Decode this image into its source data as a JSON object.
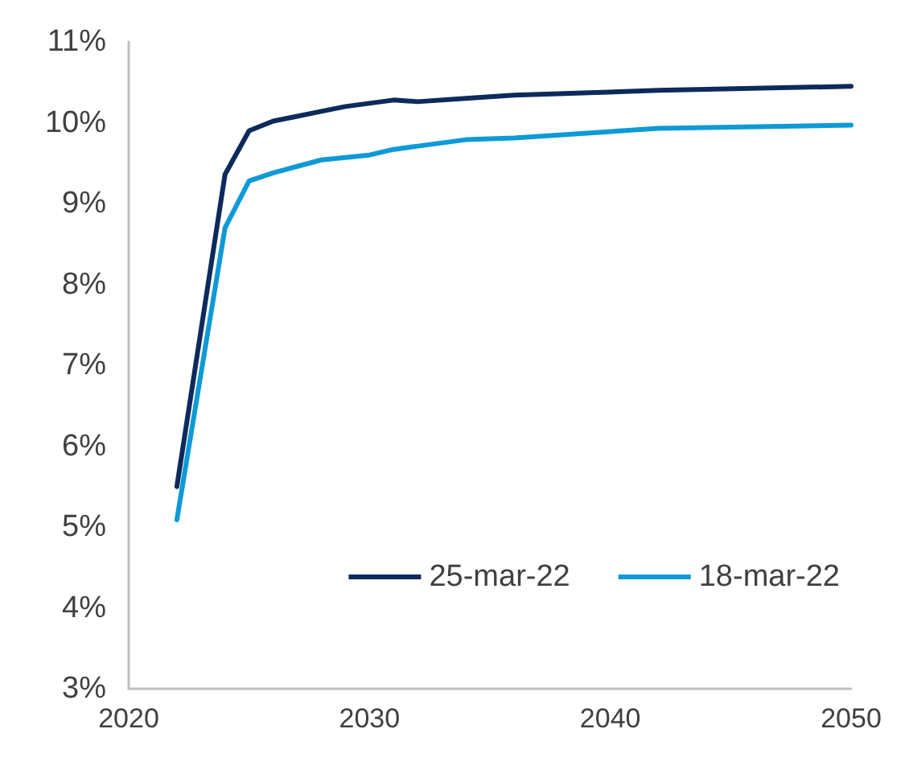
{
  "chart_data": {
    "type": "line",
    "x": [
      2022,
      2024,
      2025,
      2026,
      2027,
      2028,
      2029,
      2030,
      2031,
      2032,
      2034,
      2036,
      2042,
      2050
    ],
    "series": [
      {
        "name": "25-mar-22",
        "color": "#0d2a5c",
        "values": [
          5.5,
          9.36,
          9.9,
          10.02,
          10.08,
          10.14,
          10.2,
          10.24,
          10.28,
          10.26,
          10.3,
          10.34,
          10.4,
          10.45
        ]
      },
      {
        "name": "18-mar-22",
        "color": "#0d9ad6",
        "values": [
          5.09,
          8.7,
          9.28,
          9.38,
          9.46,
          9.54,
          9.57,
          9.6,
          9.67,
          9.71,
          9.79,
          9.81,
          9.93,
          9.97
        ]
      }
    ],
    "xlim": [
      2020,
      2050
    ],
    "xticks": [
      2020,
      2030,
      2040,
      2050
    ],
    "ylim": [
      3,
      11
    ],
    "yticks": [
      {
        "value": 3,
        "label": "3%"
      },
      {
        "value": 4,
        "label": "4%"
      },
      {
        "value": 5,
        "label": "5%"
      },
      {
        "value": 6,
        "label": "6%"
      },
      {
        "value": 7,
        "label": "7%"
      },
      {
        "value": 8,
        "label": "8%"
      },
      {
        "value": 9,
        "label": "9%"
      },
      {
        "value": 10,
        "label": "10%"
      },
      {
        "value": 11,
        "label": "11%"
      }
    ],
    "grid": false,
    "legend": "bottom right",
    "marker": "none",
    "line_style": "solid"
  }
}
